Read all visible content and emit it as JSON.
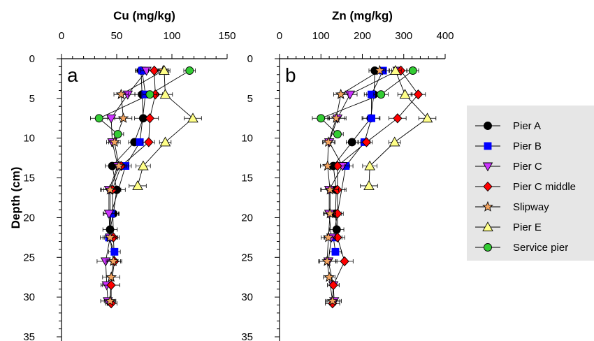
{
  "chart_data": {
    "type": "scatter",
    "panels": [
      {
        "letter": "a",
        "title": "Cu (mg/kg)",
        "xlim": [
          0,
          150
        ],
        "xticks": [
          0,
          50,
          100,
          150
        ],
        "ylim": [
          0,
          35
        ],
        "yticks": [
          0,
          5,
          10,
          15,
          20,
          25,
          30,
          35
        ],
        "ylabel": "Depth (cm)",
        "series": [
          {
            "name": "Pier A",
            "points": [
              [
                72,
                1.5
              ],
              [
                73,
                4.5
              ],
              [
                74,
                7.5
              ],
              [
                66,
                10.5
              ],
              [
                46,
                13.5
              ],
              [
                50,
                16.5
              ],
              [
                47,
                19.5
              ],
              [
                44,
                21.5
              ]
            ]
          },
          {
            "name": "Pier B",
            "points": [
              [
                73,
                1.5
              ],
              [
                76,
                4.5
              ],
              [
                71,
                10.5
              ],
              [
                58,
                13.5
              ],
              [
                45,
                19.5
              ],
              [
                43,
                22.5
              ],
              [
                48,
                24.3
              ]
            ]
          },
          {
            "name": "Pier C",
            "points": [
              [
                77,
                1.5
              ],
              [
                60,
                4.5
              ],
              [
                45,
                7.5
              ],
              [
                46,
                10.5
              ],
              [
                51,
                13.5
              ],
              [
                43,
                16.5
              ],
              [
                43,
                19.5
              ],
              [
                44,
                22.5
              ],
              [
                40,
                25.5
              ],
              [
                41,
                28.5
              ],
              [
                42,
                30.5
              ]
            ]
          },
          {
            "name": "Pier C middle",
            "points": [
              [
                84,
                1.5
              ],
              [
                85,
                4.5
              ],
              [
                80,
                7.5
              ],
              [
                79,
                10.5
              ],
              [
                54,
                13.5
              ],
              [
                46,
                16.5
              ],
              [
                47,
                22.5
              ],
              [
                48,
                25.5
              ],
              [
                45,
                28.5
              ],
              [
                45,
                30.8
              ]
            ]
          },
          {
            "name": "Slipway",
            "points": [
              [
                92,
                1.5
              ],
              [
                54,
                4.5
              ],
              [
                56,
                7.5
              ],
              [
                48,
                10.5
              ],
              [
                52,
                13.5
              ],
              [
                44,
                16.5
              ],
              [
                44,
                22.5
              ],
              [
                47,
                25.5
              ],
              [
                45,
                27.5
              ],
              [
                44,
                30.5
              ]
            ]
          },
          {
            "name": "Pier E",
            "points": [
              [
                93,
                1.5
              ],
              [
                94,
                4.5
              ],
              [
                119,
                7.5
              ],
              [
                94,
                10.5
              ],
              [
                74,
                13.5
              ],
              [
                69,
                16
              ]
            ]
          },
          {
            "name": "Service pier",
            "points": [
              [
                116,
                1.5
              ],
              [
                80,
                4.5
              ],
              [
                34,
                7.5
              ],
              [
                51,
                9.5
              ]
            ]
          }
        ]
      },
      {
        "letter": "b",
        "title": "Zn (mg/kg)",
        "xlim": [
          0,
          400
        ],
        "xticks": [
          0,
          100,
          200,
          300,
          400
        ],
        "ylim": [
          0,
          35
        ],
        "yticks": [
          0,
          5,
          10,
          15,
          20,
          25,
          30,
          35
        ],
        "ylabel": "",
        "series": [
          {
            "name": "Pier A",
            "points": [
              [
                230,
                1.5
              ],
              [
                228,
                4.5
              ],
              [
                220,
                7.5
              ],
              [
                175,
                10.5
              ],
              [
                130,
                13.5
              ],
              [
                137,
                16.5
              ],
              [
                135,
                19.5
              ],
              [
                138,
                21.5
              ]
            ]
          },
          {
            "name": "Pier B",
            "points": [
              [
                250,
                1.5
              ],
              [
                222,
                4.5
              ],
              [
                222,
                7.5
              ],
              [
                205,
                10.5
              ],
              [
                160,
                13.5
              ],
              [
                130,
                22.5
              ],
              [
                135,
                24.3
              ]
            ]
          },
          {
            "name": "Pier C",
            "points": [
              [
                285,
                1.5
              ],
              [
                170,
                4.5
              ],
              [
                140,
                7.5
              ],
              [
                120,
                10.5
              ],
              [
                152,
                13.5
              ],
              [
                120,
                16.5
              ],
              [
                120,
                19.5
              ],
              [
                125,
                22.5
              ],
              [
                118,
                25.5
              ],
              [
                130,
                28.5
              ],
              [
                132,
                30.5
              ]
            ]
          },
          {
            "name": "Pier C middle",
            "points": [
              [
                293,
                1.5
              ],
              [
                335,
                4.5
              ],
              [
                285,
                7.5
              ],
              [
                210,
                10.5
              ],
              [
                140,
                13.5
              ],
              [
                140,
                16.5
              ],
              [
                140,
                19.5
              ],
              [
                140,
                22.5
              ],
              [
                157,
                25.5
              ],
              [
                130,
                28.5
              ],
              [
                128,
                30.8
              ]
            ]
          },
          {
            "name": "Slipway",
            "points": [
              [
                242,
                1.5
              ],
              [
                148,
                4.5
              ],
              [
                137,
                7.5
              ],
              [
                118,
                10.5
              ],
              [
                116,
                13.5
              ],
              [
                122,
                16.5
              ],
              [
                122,
                19.5
              ],
              [
                118,
                22.5
              ],
              [
                115,
                25.5
              ],
              [
                120,
                27.5
              ],
              [
                128,
                30.5
              ]
            ]
          },
          {
            "name": "Pier E",
            "points": [
              [
                280,
                1.5
              ],
              [
                303,
                4.5
              ],
              [
                357,
                7.5
              ],
              [
                278,
                10.5
              ],
              [
                218,
                13.5
              ],
              [
                216,
                16
              ]
            ]
          },
          {
            "name": "Service pier",
            "points": [
              [
                322,
                1.5
              ],
              [
                245,
                4.5
              ],
              [
                100,
                7.5
              ],
              [
                140,
                9.5
              ]
            ]
          }
        ]
      }
    ],
    "legend": {
      "placement": "right",
      "entries": [
        {
          "name": "Pier A",
          "marker": "circle",
          "color": "#000000"
        },
        {
          "name": "Pier B",
          "marker": "square",
          "color": "#0000ff"
        },
        {
          "name": "Pier C",
          "marker": "triangle-down",
          "color": "#cc33ff"
        },
        {
          "name": "Pier C middle",
          "marker": "diamond",
          "color": "#ff0000"
        },
        {
          "name": "Slipway",
          "marker": "star",
          "color": "#f4a460"
        },
        {
          "name": "Pier E",
          "marker": "triangle-up",
          "color": "#ffff88"
        },
        {
          "name": "Service pier",
          "marker": "circle",
          "color": "#33cc33"
        }
      ],
      "background": "#e6e6e6"
    },
    "grid": false,
    "y_axis_inverted": true,
    "error_bars": true
  }
}
